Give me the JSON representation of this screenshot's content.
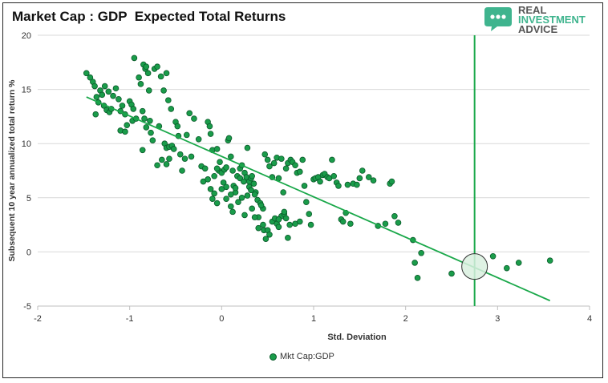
{
  "brand": {
    "line1": "REAL",
    "line2": "INVESTMENT",
    "line3": "ADVICE",
    "logo_icon": "speech-bubble-icon",
    "colors": {
      "logo": "#3fb48e",
      "text": "#555555"
    }
  },
  "chart_data": {
    "type": "scatter",
    "title": "Market Cap : GDP  Expected Total Returns",
    "xlabel": "Std. Deviation",
    "ylabel": "Subsequent 10 year annualized total return %",
    "xlim": [
      -2,
      4
    ],
    "ylim": [
      -5,
      20
    ],
    "x_ticks": [
      -2,
      -1,
      0,
      1,
      2,
      3,
      4
    ],
    "y_ticks": [
      -5,
      0,
      5,
      10,
      15,
      20
    ],
    "grid": "horizontal",
    "legend": "bottom",
    "colors": {
      "points": "#1a9c4a",
      "point_edge": "#0a5a2a",
      "trend": "#1aa84a",
      "marker_line": "#1aa84a",
      "highlight": "#d9f0df"
    },
    "series": [
      {
        "name": "Mkt Cap:GDP",
        "points": [
          [
            -1.47,
            16.5
          ],
          [
            -1.43,
            16.1
          ],
          [
            -1.4,
            15.7
          ],
          [
            -1.38,
            15.3
          ],
          [
            -1.36,
            14.3
          ],
          [
            -1.34,
            13.8
          ],
          [
            -1.37,
            12.7
          ],
          [
            -1.32,
            14.9
          ],
          [
            -1.3,
            14.5
          ],
          [
            -1.28,
            13.5
          ],
          [
            -1.27,
            15.3
          ],
          [
            -1.25,
            13.1
          ],
          [
            -1.23,
            14.8
          ],
          [
            -1.22,
            12.9
          ],
          [
            -1.2,
            13.2
          ],
          [
            -1.18,
            14.4
          ],
          [
            -1.15,
            15.1
          ],
          [
            -1.12,
            14.1
          ],
          [
            -1.1,
            13.0
          ],
          [
            -1.08,
            13.5
          ],
          [
            -1.05,
            12.7
          ],
          [
            -1.03,
            11.7
          ],
          [
            -1.1,
            11.2
          ],
          [
            -1.05,
            11.1
          ],
          [
            -1.0,
            13.9
          ],
          [
            -0.98,
            13.6
          ],
          [
            -0.96,
            13.2
          ],
          [
            -0.97,
            12.1
          ],
          [
            -0.95,
            17.9
          ],
          [
            -0.93,
            12.3
          ],
          [
            -0.9,
            16.1
          ],
          [
            -0.88,
            15.5
          ],
          [
            -0.86,
            13.0
          ],
          [
            -0.85,
            17.3
          ],
          [
            -0.83,
            16.9
          ],
          [
            -0.82,
            17.1
          ],
          [
            -0.8,
            16.5
          ],
          [
            -0.79,
            14.9
          ],
          [
            -0.84,
            12.3
          ],
          [
            -0.82,
            11.5
          ],
          [
            -0.86,
            9.4
          ],
          [
            -0.78,
            12.1
          ],
          [
            -0.77,
            11.0
          ],
          [
            -0.75,
            10.3
          ],
          [
            -0.73,
            16.9
          ],
          [
            -0.7,
            17.1
          ],
          [
            -0.68,
            11.6
          ],
          [
            -0.66,
            16.2
          ],
          [
            -0.63,
            14.9
          ],
          [
            -0.6,
            16.5
          ],
          [
            -0.58,
            14.0
          ],
          [
            -0.62,
            10.0
          ],
          [
            -0.6,
            9.6
          ],
          [
            -0.57,
            9.7
          ],
          [
            -0.55,
            13.2
          ],
          [
            -0.54,
            9.8
          ],
          [
            -0.5,
            12.0
          ],
          [
            -0.48,
            11.6
          ],
          [
            -0.45,
            9.0
          ],
          [
            -0.47,
            10.7
          ],
          [
            -0.52,
            9.5
          ],
          [
            -0.57,
            8.6
          ],
          [
            -0.6,
            8.1
          ],
          [
            -0.65,
            8.5
          ],
          [
            -0.7,
            8.0
          ],
          [
            -0.43,
            7.5
          ],
          [
            -0.4,
            8.6
          ],
          [
            -0.38,
            10.8
          ],
          [
            -0.35,
            12.8
          ],
          [
            -0.33,
            8.8
          ],
          [
            -0.3,
            12.3
          ],
          [
            -0.25,
            10.4
          ],
          [
            -0.22,
            7.9
          ],
          [
            -0.2,
            6.5
          ],
          [
            -0.18,
            7.7
          ],
          [
            -0.15,
            12.0
          ],
          [
            -0.13,
            11.6
          ],
          [
            -0.12,
            10.9
          ],
          [
            -0.1,
            9.4
          ],
          [
            -0.08,
            7.0
          ],
          [
            -0.05,
            9.5
          ],
          [
            -0.03,
            7.5
          ],
          [
            -0.02,
            8.3
          ],
          [
            0.0,
            7.3
          ],
          [
            0.02,
            6.4
          ],
          [
            0.03,
            7.6
          ],
          [
            0.05,
            6.0
          ],
          [
            0.07,
            10.3
          ],
          [
            0.08,
            10.5
          ],
          [
            0.1,
            8.8
          ],
          [
            0.12,
            7.5
          ],
          [
            0.13,
            6.1
          ],
          [
            0.15,
            5.5
          ],
          [
            0.17,
            7.0
          ],
          [
            0.2,
            7.7
          ],
          [
            0.22,
            8.0
          ],
          [
            0.25,
            7.3
          ],
          [
            0.27,
            6.9
          ],
          [
            0.28,
            9.6
          ],
          [
            0.3,
            6.5
          ],
          [
            0.32,
            6.8
          ],
          [
            0.33,
            7.0
          ],
          [
            0.35,
            6.3
          ],
          [
            0.37,
            5.5
          ],
          [
            0.39,
            4.8
          ],
          [
            0.4,
            3.2
          ],
          [
            0.42,
            4.5
          ],
          [
            0.45,
            4.0
          ],
          [
            0.47,
            9.0
          ],
          [
            0.5,
            8.5
          ],
          [
            0.52,
            7.9
          ],
          [
            0.55,
            6.9
          ],
          [
            0.57,
            8.2
          ],
          [
            0.6,
            8.7
          ],
          [
            0.62,
            6.8
          ],
          [
            0.65,
            8.6
          ],
          [
            0.67,
            5.5
          ],
          [
            0.7,
            7.7
          ],
          [
            0.72,
            8.2
          ],
          [
            0.75,
            8.5
          ],
          [
            0.77,
            8.3
          ],
          [
            0.8,
            8.0
          ],
          [
            0.82,
            7.3
          ],
          [
            0.85,
            7.4
          ],
          [
            0.88,
            8.5
          ],
          [
            0.9,
            6.1
          ],
          [
            0.92,
            4.6
          ],
          [
            0.95,
            3.5
          ],
          [
            0.97,
            2.5
          ],
          [
            1.0,
            6.7
          ],
          [
            1.02,
            6.8
          ],
          [
            1.05,
            6.9
          ],
          [
            1.07,
            6.5
          ],
          [
            1.1,
            7.1
          ],
          [
            1.12,
            7.2
          ],
          [
            1.15,
            6.9
          ],
          [
            1.17,
            6.8
          ],
          [
            1.2,
            8.5
          ],
          [
            1.22,
            7.0
          ],
          [
            1.25,
            6.4
          ],
          [
            1.27,
            6.1
          ],
          [
            1.3,
            3.0
          ],
          [
            1.32,
            2.8
          ],
          [
            1.35,
            3.6
          ],
          [
            1.37,
            6.2
          ],
          [
            1.4,
            2.6
          ],
          [
            1.43,
            6.3
          ],
          [
            1.47,
            6.2
          ],
          [
            1.5,
            6.8
          ],
          [
            1.53,
            7.5
          ],
          [
            1.6,
            6.9
          ],
          [
            1.65,
            6.6
          ],
          [
            1.7,
            2.4
          ],
          [
            1.78,
            2.6
          ],
          [
            1.83,
            6.3
          ],
          [
            1.85,
            6.5
          ],
          [
            1.88,
            3.3
          ],
          [
            1.92,
            2.7
          ],
          [
            2.08,
            1.1
          ],
          [
            2.1,
            -1.0
          ],
          [
            2.13,
            -2.4
          ],
          [
            2.17,
            -0.1
          ],
          [
            2.5,
            -2.0
          ],
          [
            2.95,
            -0.4
          ],
          [
            3.1,
            -1.5
          ],
          [
            3.23,
            -1.0
          ],
          [
            3.57,
            -0.8
          ],
          [
            -0.05,
            4.5
          ],
          [
            0.0,
            5.8
          ],
          [
            0.05,
            4.9
          ],
          [
            0.1,
            5.3
          ],
          [
            0.12,
            3.7
          ],
          [
            0.18,
            4.6
          ],
          [
            0.22,
            5.0
          ],
          [
            0.25,
            3.4
          ],
          [
            0.3,
            6.0
          ],
          [
            0.33,
            4.0
          ],
          [
            0.36,
            3.2
          ],
          [
            0.4,
            2.2
          ],
          [
            0.43,
            4.3
          ],
          [
            0.46,
            2.0
          ],
          [
            0.48,
            1.2
          ],
          [
            0.5,
            2.0
          ],
          [
            0.52,
            1.6
          ],
          [
            0.55,
            2.8
          ],
          [
            0.58,
            3.1
          ],
          [
            0.6,
            2.6
          ],
          [
            0.62,
            2.3
          ],
          [
            0.65,
            3.3
          ],
          [
            0.68,
            3.5
          ],
          [
            0.7,
            3.1
          ],
          [
            0.74,
            2.5
          ],
          [
            0.8,
            2.6
          ],
          [
            0.85,
            2.8
          ],
          [
            -0.15,
            6.7
          ],
          [
            -0.12,
            5.8
          ],
          [
            -0.1,
            4.9
          ],
          [
            -0.08,
            5.4
          ],
          [
            -0.05,
            7.7
          ],
          [
            0.05,
            7.8
          ],
          [
            0.1,
            4.2
          ],
          [
            0.15,
            5.9
          ],
          [
            0.2,
            6.8
          ],
          [
            0.24,
            6.5
          ],
          [
            0.28,
            5.2
          ],
          [
            0.32,
            5.7
          ],
          [
            0.36,
            5.3
          ],
          [
            0.45,
            2.5
          ],
          [
            0.62,
            3.0
          ],
          [
            0.68,
            3.7
          ],
          [
            0.72,
            1.3
          ]
        ]
      }
    ],
    "trendline": {
      "x": [
        -1.47,
        3.57
      ],
      "y": [
        14.3,
        -4.5
      ]
    },
    "vertical_line_x": 2.75,
    "highlight": {
      "x": 2.75,
      "y": -1.35
    }
  }
}
